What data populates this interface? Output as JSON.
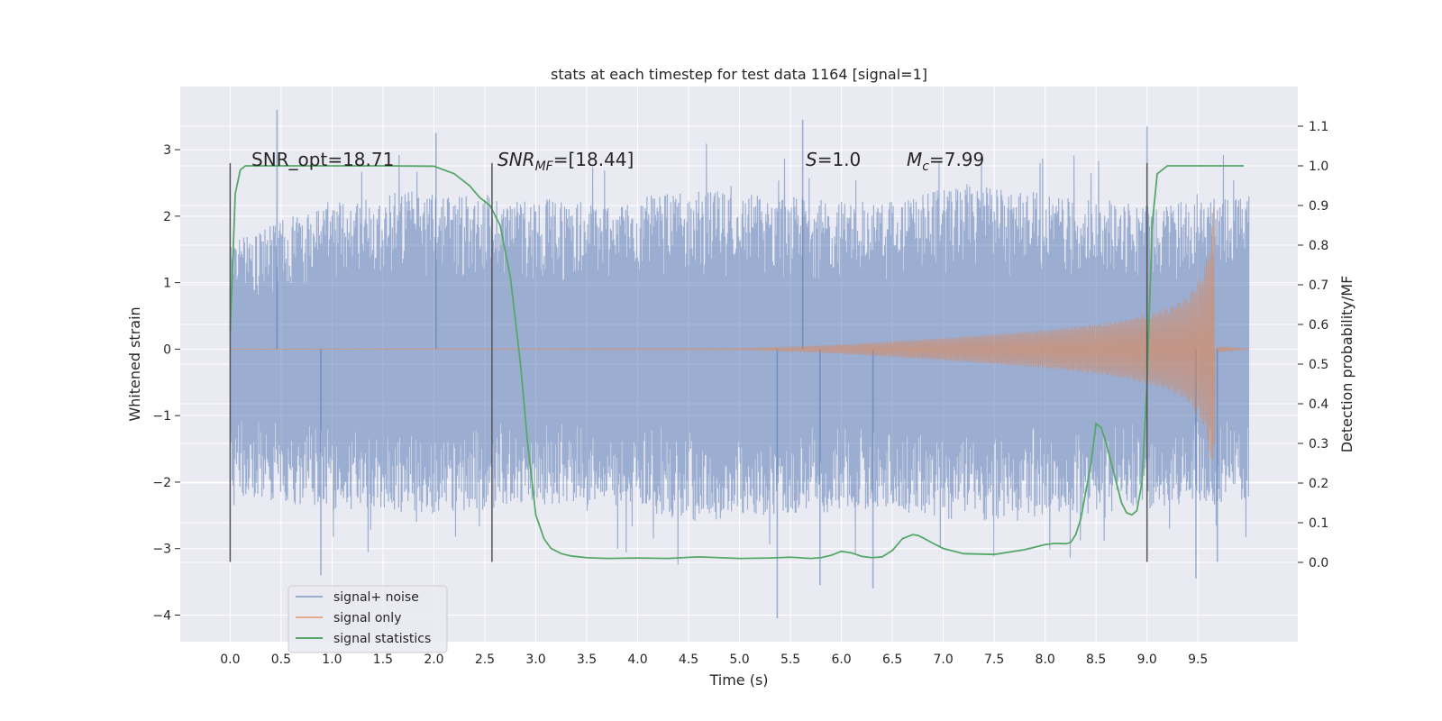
{
  "chart_data": {
    "type": "line",
    "title": "stats at each timestep for test data 1164 [signal=1]",
    "xlabel": "Time (s)",
    "ylabel": "Whitened strain",
    "y2label": "Detection probability/MF",
    "xlim": [
      -0.49,
      10.48
    ],
    "ylim": [
      -4.4,
      3.95
    ],
    "y2lim": [
      -0.2,
      1.2
    ],
    "xticks": [
      "0.0",
      "0.5",
      "1.0",
      "1.5",
      "2.0",
      "2.5",
      "3.0",
      "3.5",
      "4.0",
      "4.5",
      "5.0",
      "5.5",
      "6.0",
      "6.5",
      "7.0",
      "7.5",
      "8.0",
      "8.5",
      "9.0",
      "9.5"
    ],
    "yticks": [
      "3",
      "2",
      "1",
      "0",
      "−1",
      "−2",
      "−3",
      "−4"
    ],
    "y2ticks": [
      "0.0",
      "0.1",
      "0.2",
      "0.3",
      "0.4",
      "0.5",
      "0.6",
      "0.7",
      "0.8",
      "0.9",
      "1.0",
      "1.1"
    ],
    "grid": true,
    "legend_position": "lower-left",
    "colors": {
      "signal_noise": "#4c72b0",
      "signal_only": "#dd8452",
      "statistics": "#55a868",
      "background": "#eaeaf2",
      "grid": "#ffffff",
      "vlines": "#555555"
    },
    "annotations": {
      "snr_opt": "SNR_opt=18.71",
      "snr_mf_var": "SNR",
      "snr_mf_sub": "MF",
      "snr_mf_val": "=[18.44]",
      "s_var": "S",
      "s_val": "=1.0",
      "mc_var": "M",
      "mc_sub": "c",
      "mc_val": "=7.99"
    },
    "vertical_lines_x": [
      0.0,
      2.57,
      9.0
    ],
    "vertical_lines_y": [
      -3.2,
      2.8
    ],
    "series": [
      {
        "name": "signal+ noise",
        "kind": "noise",
        "x_range": [
          0.0,
          10.0
        ],
        "envelope_upper": [
          1.6,
          2.2,
          2.4,
          2.3,
          2.2,
          2.4,
          2.3,
          2.2,
          2.5,
          2.3,
          2.2,
          2.3
        ],
        "envelope_lower": [
          -2.2,
          -2.4,
          -2.5,
          -2.4,
          -2.3,
          -2.6,
          -2.5,
          -2.4,
          -2.6,
          -2.5,
          -2.4,
          -2.3
        ],
        "peaks": [
          [
            0.46,
            3.6
          ],
          [
            2.02,
            3.25
          ],
          [
            5.62,
            3.45
          ],
          [
            9.0,
            3.35
          ],
          [
            0.89,
            -3.4
          ],
          [
            5.37,
            -4.05
          ],
          [
            5.79,
            -3.55
          ],
          [
            6.31,
            -3.6
          ],
          [
            9.48,
            -3.45
          ],
          [
            9.69,
            -3.2
          ]
        ]
      },
      {
        "name": "signal only",
        "kind": "chirp",
        "x_range": [
          0.0,
          10.0
        ],
        "amp_t": [
          0.0,
          5.0,
          5.5,
          6.0,
          6.5,
          7.0,
          7.5,
          8.0,
          8.5,
          8.8,
          9.0,
          9.2,
          9.4,
          9.55,
          9.62,
          9.66,
          9.67,
          9.7,
          10.0
        ],
        "amp_v": [
          0.0,
          0.01,
          0.03,
          0.07,
          0.12,
          0.17,
          0.23,
          0.29,
          0.38,
          0.45,
          0.53,
          0.62,
          0.79,
          1.15,
          1.6,
          2.25,
          0.0,
          0.04,
          0.0
        ]
      },
      {
        "name": "signal statistics",
        "kind": "prob",
        "x": [
          0.0,
          0.05,
          0.1,
          0.15,
          0.2,
          0.3,
          0.5,
          1.0,
          1.5,
          2.0,
          2.2,
          2.35,
          2.45,
          2.55,
          2.65,
          2.75,
          2.85,
          2.92,
          3.0,
          3.08,
          3.15,
          3.25,
          3.35,
          3.5,
          3.7,
          4.0,
          4.3,
          4.6,
          4.8,
          5.0,
          5.3,
          5.5,
          5.7,
          5.8,
          5.9,
          6.0,
          6.1,
          6.2,
          6.3,
          6.4,
          6.5,
          6.6,
          6.7,
          6.75,
          6.8,
          6.9,
          7.0,
          7.2,
          7.5,
          7.8,
          8.0,
          8.1,
          8.2,
          8.25,
          8.3,
          8.35,
          8.4,
          8.45,
          8.5,
          8.55,
          8.6,
          8.7,
          8.75,
          8.8,
          8.85,
          8.9,
          8.95,
          9.0,
          9.05,
          9.1,
          9.2,
          9.5,
          9.8,
          9.95
        ],
        "y": [
          0.58,
          0.93,
          0.99,
          1.0,
          1.0,
          1.0,
          1.0,
          1.0,
          1.0,
          0.999,
          0.98,
          0.95,
          0.92,
          0.9,
          0.85,
          0.72,
          0.5,
          0.3,
          0.12,
          0.06,
          0.035,
          0.022,
          0.016,
          0.012,
          0.01,
          0.011,
          0.01,
          0.014,
          0.012,
          0.01,
          0.011,
          0.013,
          0.01,
          0.012,
          0.018,
          0.028,
          0.024,
          0.015,
          0.012,
          0.014,
          0.03,
          0.06,
          0.07,
          0.068,
          0.062,
          0.048,
          0.035,
          0.022,
          0.02,
          0.032,
          0.045,
          0.048,
          0.047,
          0.05,
          0.07,
          0.11,
          0.18,
          0.25,
          0.35,
          0.34,
          0.3,
          0.2,
          0.15,
          0.125,
          0.12,
          0.13,
          0.2,
          0.45,
          0.85,
          0.98,
          1.0,
          1.0,
          1.0,
          1.0
        ]
      }
    ]
  }
}
